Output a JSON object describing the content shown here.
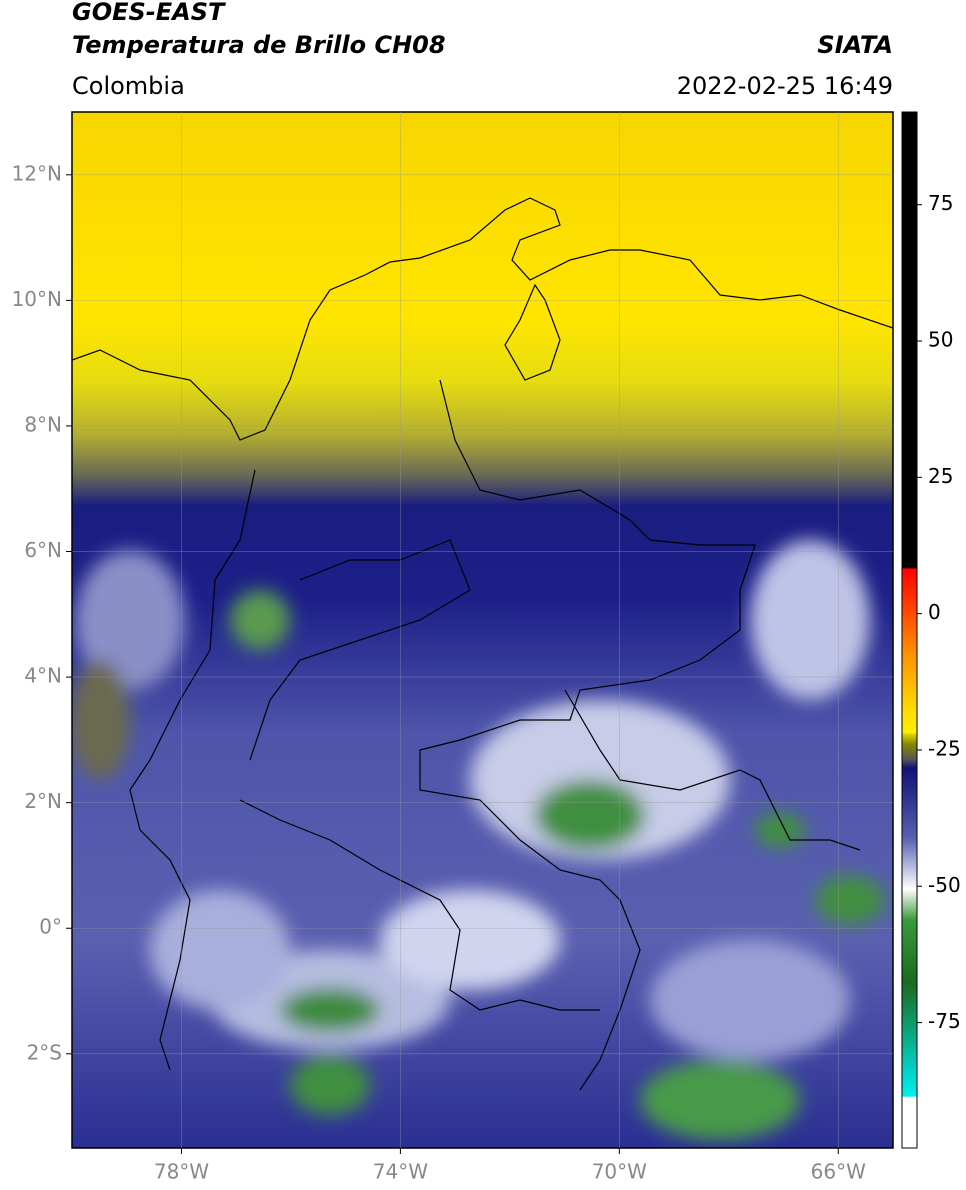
{
  "header": {
    "satellite": "GOES-EAST",
    "product": "Temperatura de Brillo CH08",
    "organization": "SIATA",
    "region": "Colombia",
    "datetime": "2022-02-25 16:49"
  },
  "map": {
    "lonlim": [
      -80,
      -65
    ],
    "latlim": [
      -3.5,
      13
    ],
    "lon_ticks": [
      {
        "value": -78,
        "label": "78°W"
      },
      {
        "value": -74,
        "label": "74°W"
      },
      {
        "value": -70,
        "label": "70°W"
      },
      {
        "value": -66,
        "label": "66°W"
      }
    ],
    "lat_ticks": [
      {
        "value": 12,
        "label": "12°N"
      },
      {
        "value": 10,
        "label": "10°N"
      },
      {
        "value": 8,
        "label": "8°N"
      },
      {
        "value": 6,
        "label": "6°N"
      },
      {
        "value": 4,
        "label": "4°N"
      },
      {
        "value": 2,
        "label": "2°N"
      },
      {
        "value": 0,
        "label": "0°"
      },
      {
        "value": -2,
        "label": "2°S"
      }
    ],
    "grid": true
  },
  "colorbar": {
    "lim": [
      -98,
      92
    ],
    "ticks": [
      75,
      50,
      25,
      0,
      -25,
      -50,
      -75
    ]
  }
}
